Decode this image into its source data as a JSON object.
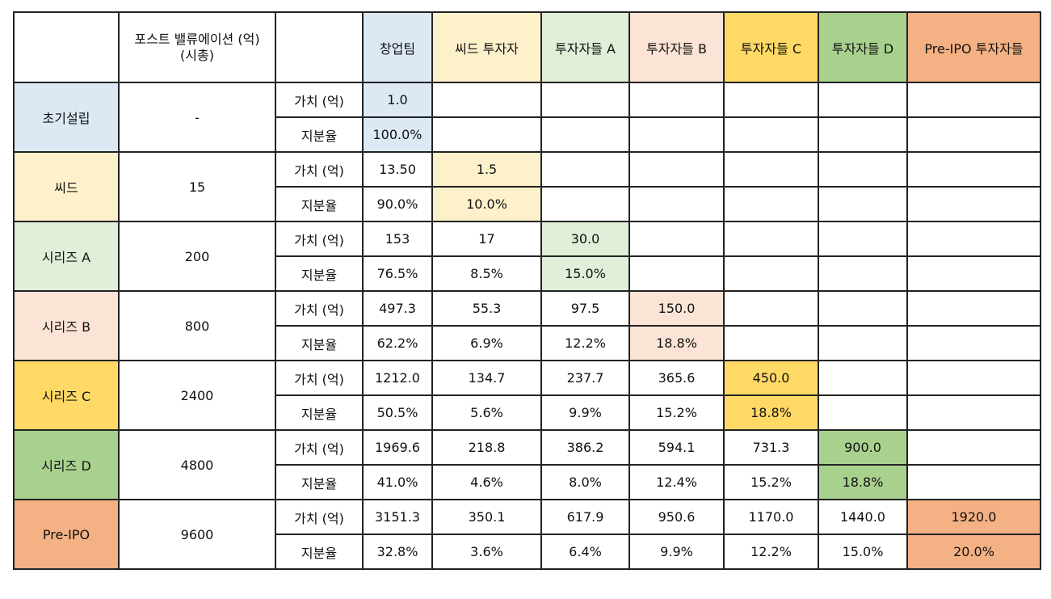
{
  "header": {
    "corner": "",
    "valuation_label": "포스트 밸류에이션 (억)",
    "valuation_sub": "(시총)",
    "metric_col": "",
    "investors": [
      "창업팀",
      "씨드 투자자",
      "투자자들 A",
      "투자자들 B",
      "투자자들 C",
      "투자자들 D",
      "Pre-IPO 투자자들"
    ]
  },
  "metric_labels": {
    "value": "가치 (억)",
    "share": "지분율"
  },
  "rounds": [
    {
      "name": "초기설립",
      "valuation": "-",
      "value": [
        "1.0",
        "",
        "",
        "",
        "",
        "",
        ""
      ],
      "share": [
        "100.0%",
        "",
        "",
        "",
        "",
        "",
        ""
      ]
    },
    {
      "name": "씨드",
      "valuation": "15",
      "value": [
        "13.50",
        "1.5",
        "",
        "",
        "",
        "",
        ""
      ],
      "share": [
        "90.0%",
        "10.0%",
        "",
        "",
        "",
        "",
        ""
      ]
    },
    {
      "name": "시리즈 A",
      "valuation": "200",
      "value": [
        "153",
        "17",
        "30.0",
        "",
        "",
        "",
        ""
      ],
      "share": [
        "76.5%",
        "8.5%",
        "15.0%",
        "",
        "",
        "",
        ""
      ]
    },
    {
      "name": "시리즈 B",
      "valuation": "800",
      "value": [
        "497.3",
        "55.3",
        "97.5",
        "150.0",
        "",
        "",
        ""
      ],
      "share": [
        "62.2%",
        "6.9%",
        "12.2%",
        "18.8%",
        "",
        "",
        ""
      ]
    },
    {
      "name": "시리즈 C",
      "valuation": "2400",
      "value": [
        "1212.0",
        "134.7",
        "237.7",
        "365.6",
        "450.0",
        "",
        ""
      ],
      "share": [
        "50.5%",
        "5.6%",
        "9.9%",
        "15.2%",
        "18.8%",
        "",
        ""
      ]
    },
    {
      "name": "시리즈 D",
      "valuation": "4800",
      "value": [
        "1969.6",
        "218.8",
        "386.2",
        "594.1",
        "731.3",
        "900.0",
        ""
      ],
      "share": [
        "41.0%",
        "4.6%",
        "8.0%",
        "12.4%",
        "15.2%",
        "18.8%",
        ""
      ]
    },
    {
      "name": "Pre-IPO",
      "valuation": "9600",
      "value": [
        "3151.3",
        "350.1",
        "617.9",
        "950.6",
        "1170.0",
        "1440.0",
        "1920.0"
      ],
      "share": [
        "32.8%",
        "3.6%",
        "6.4%",
        "9.9%",
        "12.2%",
        "15.0%",
        "20.0%"
      ]
    }
  ],
  "colors": {
    "creators": "#dce9f5",
    "seed": "#fdf1cc",
    "series_a": "#e1eed8",
    "series_b": "#fbe4d6",
    "series_c": "#ffd966",
    "series_d": "#a9d18e",
    "pre_ipo": "#f4b183"
  }
}
